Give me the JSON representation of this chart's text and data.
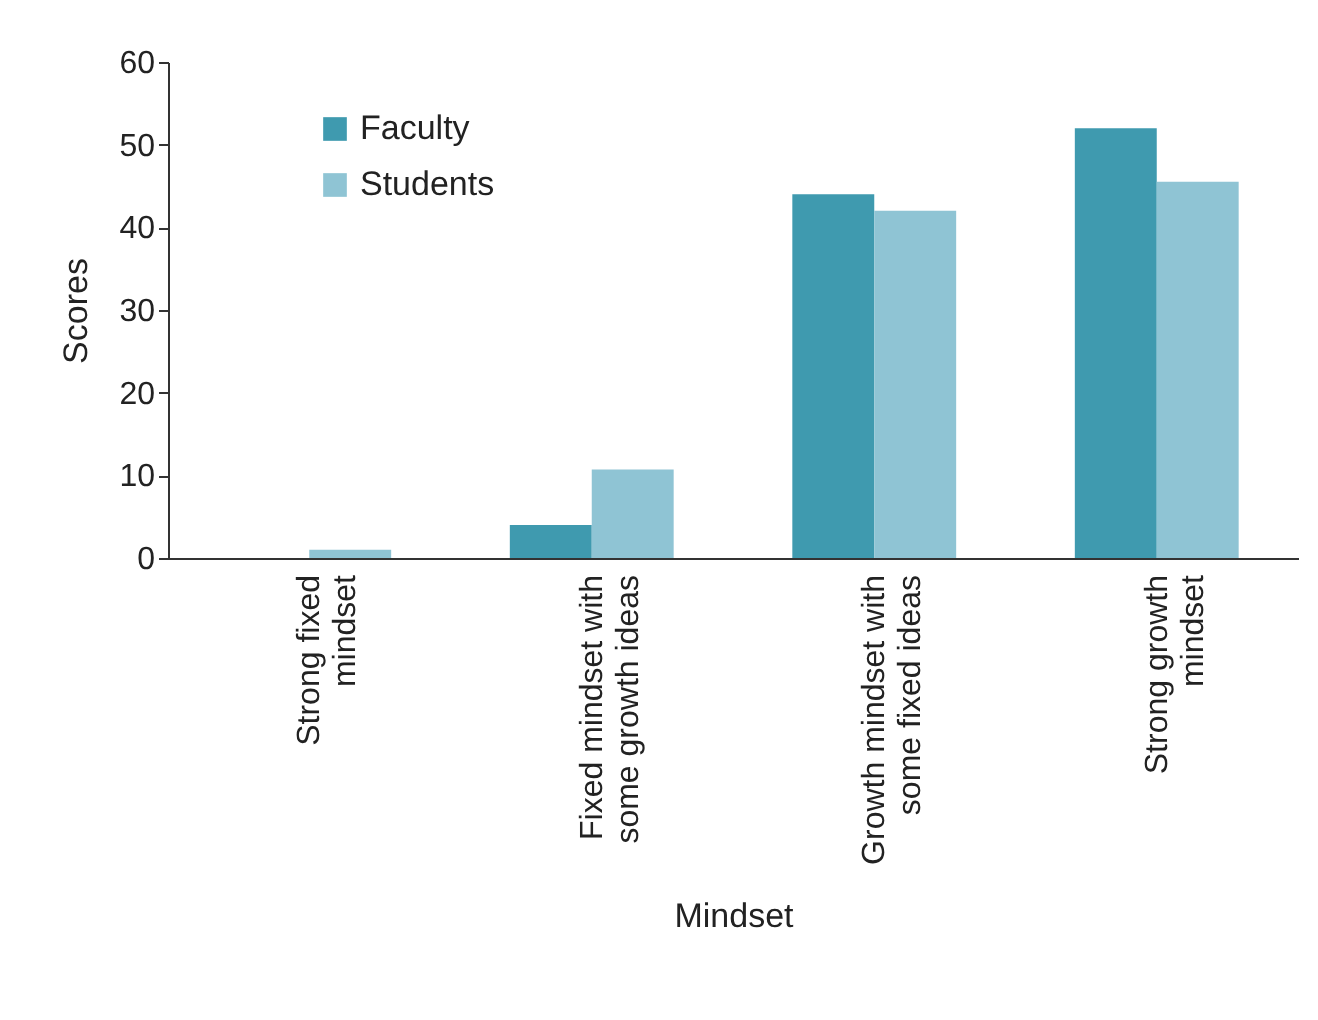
{
  "chart_data": {
    "type": "bar",
    "xlabel": "Mindset",
    "ylabel": "Scores",
    "categories": [
      "Strong fixed mindset",
      "Fixed mindset with some growth ideas",
      "Growth mindset with some fixed ideas",
      "Strong growth mindset"
    ],
    "series": [
      {
        "name": "Faculty",
        "color": "#3f9aaf",
        "values": [
          0,
          4,
          44,
          52
        ]
      },
      {
        "name": "Students",
        "color": "#8fc4d4",
        "values": [
          1,
          10.7,
          42,
          45.5
        ]
      }
    ],
    "ylim": [
      0,
      60
    ],
    "yticks": [
      0,
      10,
      20,
      30,
      40,
      50,
      60
    ],
    "grid": false,
    "legend": "top left"
  }
}
